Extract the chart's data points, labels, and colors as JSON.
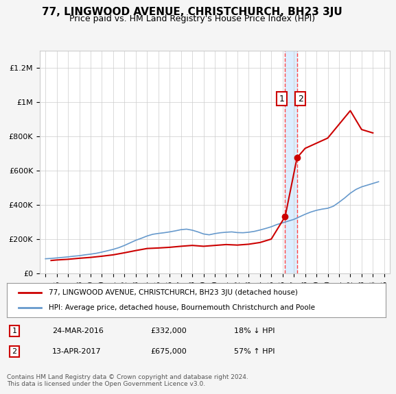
{
  "title": "77, LINGWOOD AVENUE, CHRISTCHURCH, BH23 3JU",
  "subtitle": "Price paid vs. HM Land Registry's House Price Index (HPI)",
  "hpi_label": "HPI: Average price, detached house, Bournemouth Christchurch and Poole",
  "property_label": "77, LINGWOOD AVENUE, CHRISTCHURCH, BH23 3JU (detached house)",
  "footnote": "Contains HM Land Registry data © Crown copyright and database right 2024.\nThis data is licensed under the Open Government Licence v3.0.",
  "transaction1": {
    "num": "1",
    "date": "24-MAR-2016",
    "price": "£332,000",
    "hpi": "18% ↓ HPI"
  },
  "transaction2": {
    "num": "2",
    "date": "13-APR-2017",
    "price": "£675,000",
    "hpi": "57% ↑ HPI"
  },
  "vline1_x": 2016.23,
  "vline2_x": 2017.28,
  "property_color": "#cc0000",
  "hpi_color": "#6699cc",
  "vline_color": "#ff4444",
  "point1_color": "#cc0000",
  "point2_color": "#cc0000",
  "point1_x": 2016.23,
  "point1_y": 332000,
  "point2_x": 2017.28,
  "point2_y": 675000,
  "ylim": [
    0,
    1300000
  ],
  "xlim": [
    1994.5,
    2025.5
  ],
  "background_color": "#f5f5f5",
  "plot_bg_color": "#ffffff",
  "shaded_region_color": "#ddeeff",
  "hpi_years": [
    1995,
    1995.5,
    1996,
    1996.5,
    1997,
    1997.5,
    1998,
    1998.5,
    1999,
    1999.5,
    2000,
    2000.5,
    2001,
    2001.5,
    2002,
    2002.5,
    2003,
    2003.5,
    2004,
    2004.5,
    2005,
    2005.5,
    2006,
    2006.5,
    2007,
    2007.5,
    2008,
    2008.5,
    2009,
    2009.5,
    2010,
    2010.5,
    2011,
    2011.5,
    2012,
    2012.5,
    2013,
    2013.5,
    2014,
    2014.5,
    2015,
    2015.5,
    2016,
    2016.5,
    2017,
    2017.5,
    2018,
    2018.5,
    2019,
    2019.5,
    2020,
    2020.5,
    2021,
    2021.5,
    2022,
    2022.5,
    2023,
    2023.5,
    2024,
    2024.5
  ],
  "hpi_values": [
    85000,
    87000,
    90000,
    93000,
    96000,
    100000,
    103000,
    108000,
    112000,
    117000,
    124000,
    132000,
    140000,
    150000,
    163000,
    178000,
    193000,
    205000,
    218000,
    228000,
    233000,
    237000,
    242000,
    248000,
    255000,
    258000,
    252000,
    242000,
    230000,
    225000,
    232000,
    237000,
    240000,
    242000,
    238000,
    237000,
    240000,
    245000,
    253000,
    262000,
    272000,
    285000,
    295000,
    305000,
    315000,
    330000,
    345000,
    358000,
    368000,
    375000,
    380000,
    392000,
    415000,
    440000,
    468000,
    490000,
    505000,
    515000,
    525000,
    535000
  ],
  "property_years": [
    1995.5,
    1996,
    1997,
    1998,
    1999,
    2000,
    2001,
    2002,
    2003,
    2004,
    2005,
    2006,
    2007,
    2008,
    2009,
    2010,
    2011,
    2012,
    2013,
    2014,
    2015,
    2016.23,
    2017.28,
    2018,
    2019,
    2020,
    2021,
    2022,
    2023,
    2024
  ],
  "property_values": [
    75000,
    78000,
    82000,
    88000,
    93000,
    100000,
    108000,
    120000,
    133000,
    145000,
    148000,
    152000,
    158000,
    163000,
    158000,
    163000,
    168000,
    165000,
    170000,
    180000,
    200000,
    332000,
    675000,
    730000,
    760000,
    790000,
    870000,
    950000,
    840000,
    820000
  ]
}
